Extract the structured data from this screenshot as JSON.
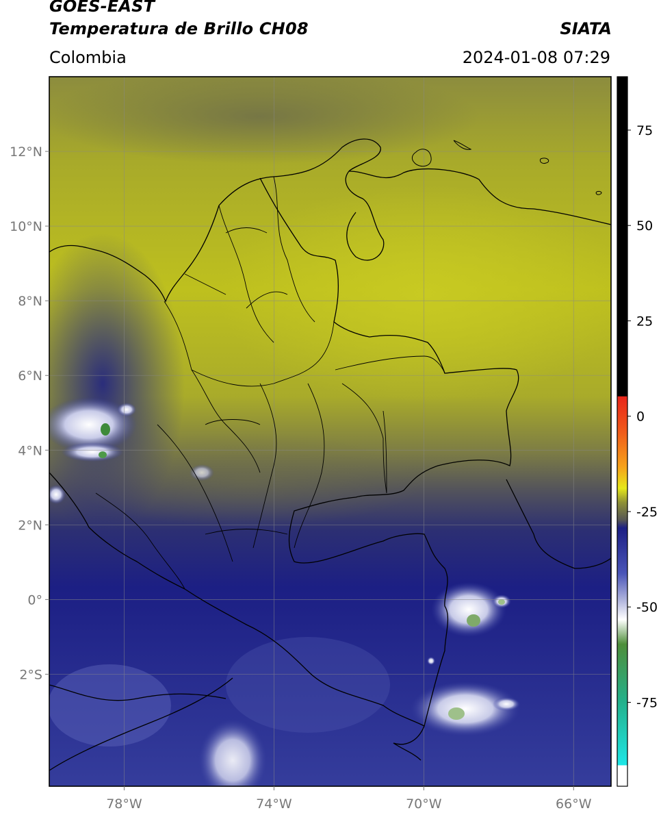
{
  "header": {
    "satellite": "GOES-EAST",
    "product": "Temperatura de Brillo CH08",
    "region": "Colombia",
    "brand": "SIATA",
    "timestamp": "2024-01-08 07:29"
  },
  "map": {
    "lat_ticks": [
      "12°N",
      "10°N",
      "8°N",
      "6°N",
      "4°N",
      "2°N",
      "0°",
      "2°S"
    ],
    "lon_ticks": [
      "78°W",
      "74°W",
      "70°W",
      "66°W"
    ],
    "extent": {
      "lon_min": -80,
      "lon_max": -65,
      "lat_min": -5,
      "lat_max": 14
    }
  },
  "colorbar": {
    "ticks": [
      "75",
      "50",
      "25",
      "0",
      "-25",
      "-50",
      "-75"
    ],
    "tick_values": [
      75,
      50,
      25,
      0,
      -25,
      -50,
      -75
    ],
    "range": [
      -97,
      89
    ],
    "colors": {
      "warm": "#000000",
      "red": "#e8261a",
      "orange": "#f6a21a",
      "yellow": "#e6e81a",
      "olive": "#8f9136",
      "gray": "#555555",
      "navy": "#1c1f84",
      "blue": "#4a55b8",
      "lavender": "#b6badf",
      "white": "#ffffff",
      "green": "#4e8e3a",
      "teal": "#24b08a",
      "cyan": "#1ee6e6"
    }
  }
}
